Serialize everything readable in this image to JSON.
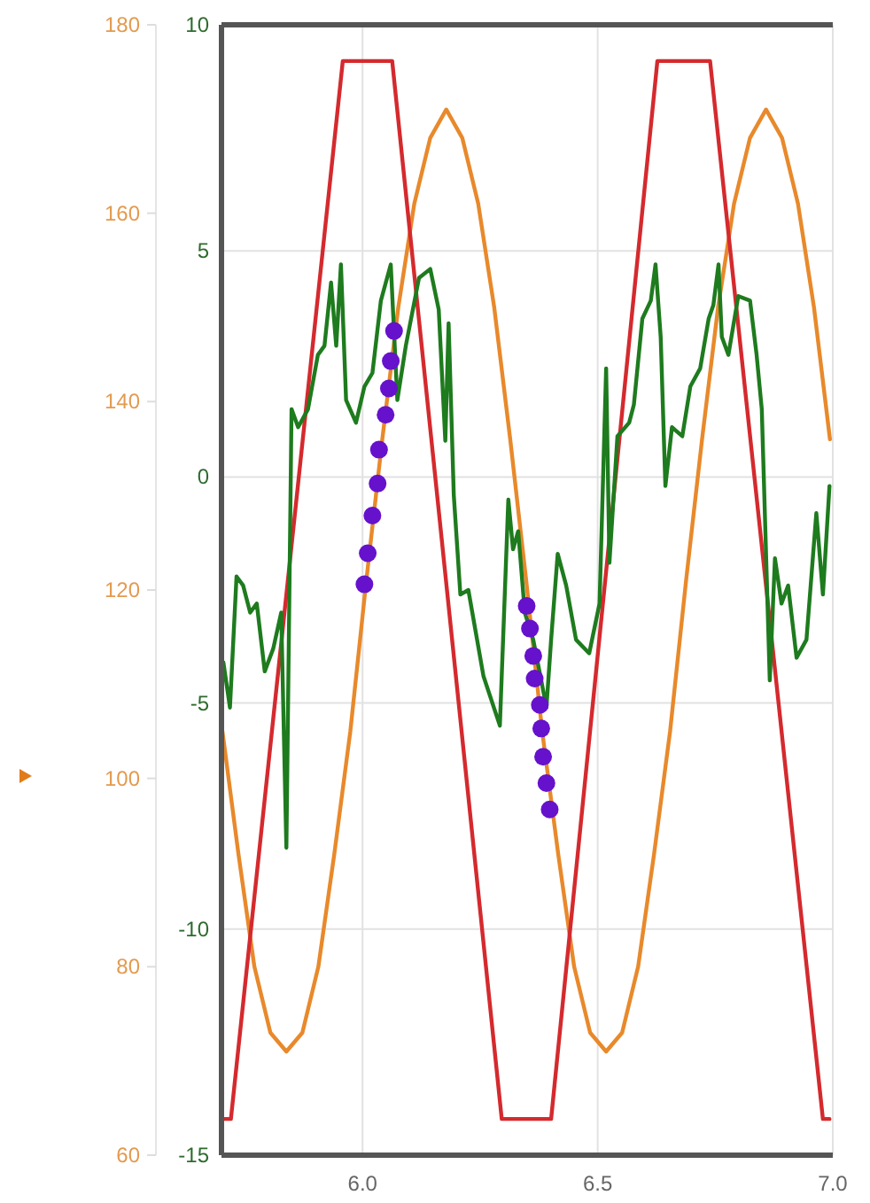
{
  "chart_data": {
    "type": "line",
    "xlim": [
      5.7,
      7.0
    ],
    "xticks": [
      {
        "value": 6,
        "label": "6.0"
      },
      {
        "value": 6.5,
        "label": "6.5"
      },
      {
        "value": 7,
        "label": "7.0"
      }
    ],
    "ylim": [
      -15,
      10
    ],
    "yticks": [
      -15,
      -10,
      -5,
      0,
      5,
      10
    ],
    "y2lim": [
      60,
      180
    ],
    "y2ticks": [
      60,
      80,
      100,
      120,
      140,
      160,
      180
    ],
    "grid": true,
    "line_style": "solid",
    "series": [
      {
        "axis": "y2",
        "color": "#e8892b",
        "x": [
          5.702,
          5.736,
          5.77,
          5.804,
          5.838,
          5.872,
          5.906,
          5.94,
          5.974,
          6.008,
          6.042,
          6.076,
          6.11,
          6.144,
          6.178,
          6.212,
          6.246,
          6.28,
          6.314,
          6.348,
          6.382,
          6.416,
          6.45,
          6.484,
          6.518,
          6.552,
          6.586,
          6.62,
          6.654,
          6.688,
          6.722,
          6.756,
          6.79,
          6.824,
          6.858,
          6.892,
          6.926,
          6.96,
          6.994
        ],
        "values": [
          105,
          92,
          80,
          73,
          71,
          73,
          80,
          92,
          105,
          121,
          136,
          150,
          161,
          168,
          171,
          168,
          161,
          150,
          136,
          121,
          105,
          92,
          80,
          73,
          71,
          73,
          80,
          92,
          105,
          121,
          136,
          150,
          161,
          168,
          171,
          168,
          161,
          150,
          136
        ]
      },
      {
        "axis": "y",
        "color": "#d42a2e",
        "x": [
          5.705,
          5.72,
          5.958,
          6.063,
          6.296,
          6.401,
          6.627,
          6.739,
          6.979,
          6.993
        ],
        "values": [
          -14.2,
          -14.2,
          9.2,
          9.2,
          -14.2,
          -14.2,
          9.2,
          9.2,
          -14.2,
          -14.2
        ]
      },
      {
        "axis": "y",
        "color": "#1e7b1e",
        "x": [
          5.704,
          5.718,
          5.732,
          5.746,
          5.761,
          5.775,
          5.792,
          5.81,
          5.827,
          5.838,
          5.849,
          5.863,
          5.884,
          5.905,
          5.919,
          5.933,
          5.944,
          5.954,
          5.965,
          5.986,
          6.004,
          6.021,
          6.039,
          6.06,
          6.074,
          6.092,
          6.12,
          6.144,
          6.162,
          6.176,
          6.183,
          6.194,
          6.208,
          6.225,
          6.257,
          6.292,
          6.31,
          6.32,
          6.331,
          6.345,
          6.363,
          6.38,
          6.391,
          6.401,
          6.415,
          6.433,
          6.454,
          6.482,
          6.504,
          6.518,
          6.525,
          6.542,
          6.567,
          6.577,
          6.595,
          6.613,
          6.623,
          6.634,
          6.644,
          6.658,
          6.68,
          6.697,
          6.718,
          6.736,
          6.746,
          6.757,
          6.764,
          6.778,
          6.799,
          6.824,
          6.838,
          6.849,
          6.866,
          6.877,
          6.891,
          6.905,
          6.923,
          6.944,
          6.965,
          6.979,
          6.993
        ],
        "values": [
          -4.1,
          -5.1,
          -2.2,
          -2.4,
          -3.0,
          -2.8,
          -4.3,
          -3.8,
          -3.0,
          -8.2,
          1.5,
          1.1,
          1.5,
          2.7,
          2.9,
          4.3,
          2.9,
          4.7,
          1.7,
          1.2,
          2.0,
          2.3,
          3.9,
          4.7,
          1.7,
          2.9,
          4.4,
          4.6,
          3.7,
          0.8,
          3.4,
          -0.4,
          -2.6,
          -2.5,
          -4.4,
          -5.5,
          -0.5,
          -1.6,
          -1.2,
          -3.0,
          -3.6,
          -4.5,
          -5.1,
          -3.6,
          -1.7,
          -2.4,
          -3.6,
          -3.9,
          -2.8,
          2.4,
          -1.9,
          0.9,
          1.2,
          1.6,
          3.5,
          3.9,
          4.7,
          3.1,
          -0.2,
          1.1,
          0.9,
          2.0,
          2.4,
          3.5,
          3.8,
          4.7,
          3.1,
          2.7,
          4.0,
          3.9,
          2.7,
          1.5,
          -4.5,
          -1.8,
          -2.8,
          -2.4,
          -4.0,
          -3.6,
          -0.8,
          -2.6,
          -0.2
        ]
      },
      {
        "type": "scatter",
        "axis": "y2",
        "color": "#6611cc",
        "marker": "circle",
        "x": [
          6.004,
          6.011,
          6.021,
          6.032,
          6.035,
          6.049,
          6.056,
          6.06,
          6.067,
          6.349,
          6.356,
          6.363,
          6.366,
          6.377,
          6.38,
          6.384,
          6.391,
          6.398
        ],
        "values": [
          120.6,
          123.9,
          127.9,
          131.3,
          134.9,
          138.6,
          141.4,
          144.3,
          147.5,
          118.3,
          115.9,
          113.0,
          110.6,
          107.8,
          105.3,
          102.3,
          99.5,
          96.7
        ]
      }
    ]
  }
}
